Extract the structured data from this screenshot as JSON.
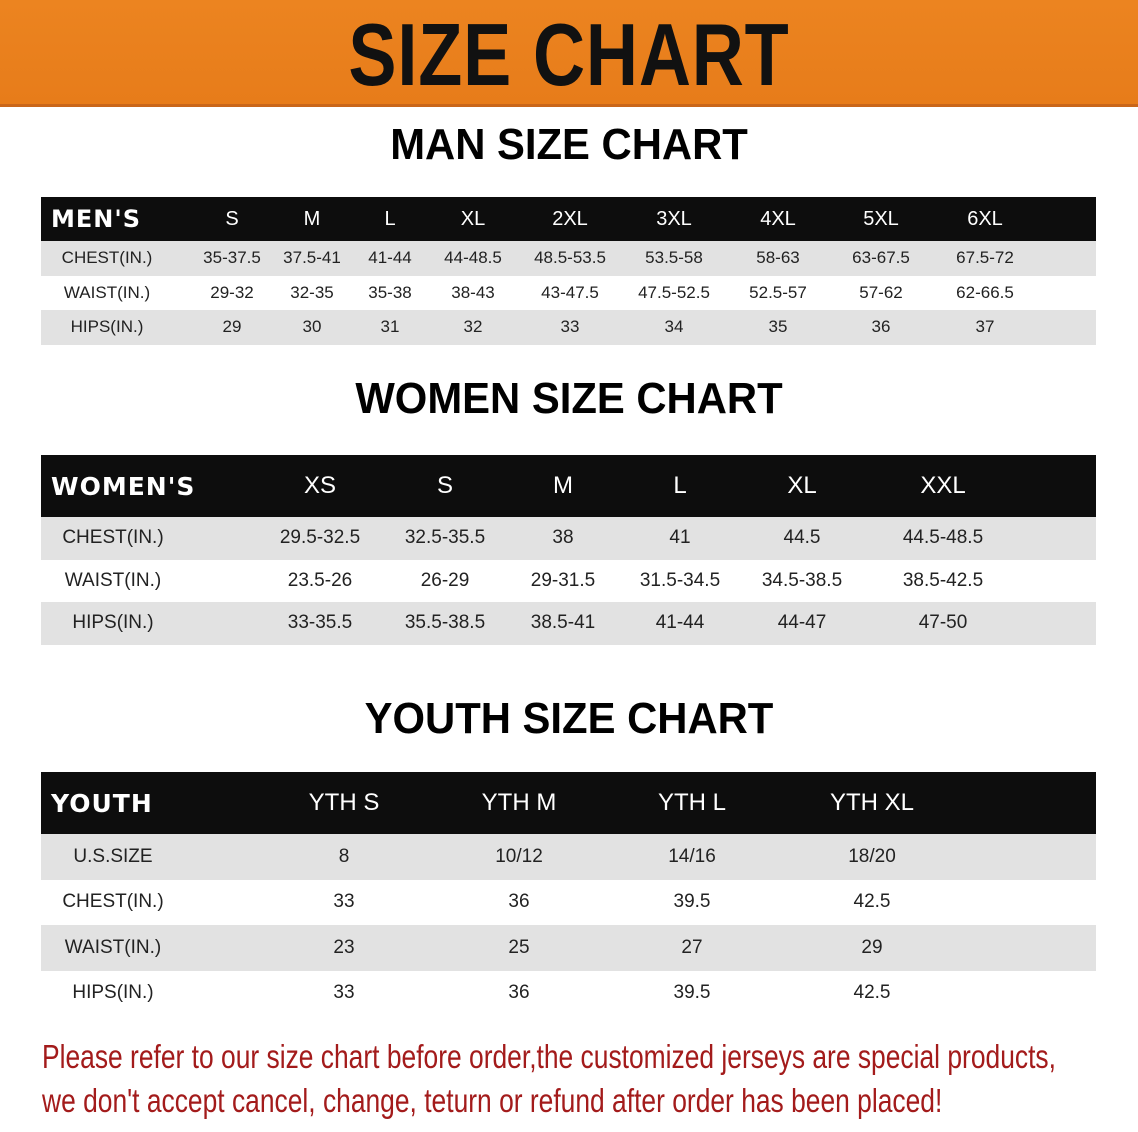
{
  "banner_title": "SIZE CHART",
  "men": {
    "title": "MAN SIZE CHART",
    "header": [
      "MEN'S",
      "S",
      "M",
      "L",
      "XL",
      "2XL",
      "3XL",
      "4XL",
      "5XL",
      "6XL"
    ],
    "rows": [
      [
        "CHEST(IN.)",
        "35-37.5",
        "37.5-41",
        "41-44",
        "44-48.5",
        "48.5-53.5",
        "53.5-58",
        "58-63",
        "63-67.5",
        "67.5-72"
      ],
      [
        "WAIST(IN.)",
        "29-32",
        "32-35",
        "35-38",
        "38-43",
        "43-47.5",
        "47.5-52.5",
        "52.5-57",
        "57-62",
        "62-66.5"
      ],
      [
        "HIPS(IN.)",
        "29",
        "30",
        "31",
        "32",
        "33",
        "34",
        "35",
        "36",
        "37"
      ]
    ]
  },
  "women": {
    "title": "WOMEN SIZE CHART",
    "header": [
      "WOMEN'S",
      "XS",
      "S",
      "M",
      "L",
      "XL",
      "XXL"
    ],
    "rows": [
      [
        "CHEST(IN.)",
        "29.5-32.5",
        "32.5-35.5",
        "38",
        "41",
        "44.5",
        "44.5-48.5"
      ],
      [
        "WAIST(IN.)",
        "23.5-26",
        "26-29",
        "29-31.5",
        "31.5-34.5",
        "34.5-38.5",
        "38.5-42.5"
      ],
      [
        "HIPS(IN.)",
        "33-35.5",
        "35.5-38.5",
        "38.5-41",
        "41-44",
        "44-47",
        "47-50"
      ]
    ]
  },
  "youth": {
    "title": "YOUTH SIZE CHART",
    "header": [
      "YOUTH",
      "YTH S",
      "YTH M",
      "YTH L",
      "YTH XL"
    ],
    "rows": [
      [
        "U.S.SIZE",
        "8",
        "10/12",
        "14/16",
        "18/20"
      ],
      [
        "CHEST(IN.)",
        "33",
        "36",
        "39.5",
        "42.5"
      ],
      [
        "WAIST(IN.)",
        "23",
        "25",
        "27",
        "29"
      ],
      [
        "HIPS(IN.)",
        "33",
        "36",
        "39.5",
        "42.5"
      ]
    ]
  },
  "notice": {
    "line1": "Please refer to our size chart before order,the customized jerseys are special products,",
    "line2": "we don't accept cancel, change, teturn or refund after order has been placed!"
  },
  "colors": {
    "banner": "#e98020",
    "header_row": "#0d0d0d",
    "stripe": "#e2e2e2",
    "notice": "#a31b1b"
  }
}
